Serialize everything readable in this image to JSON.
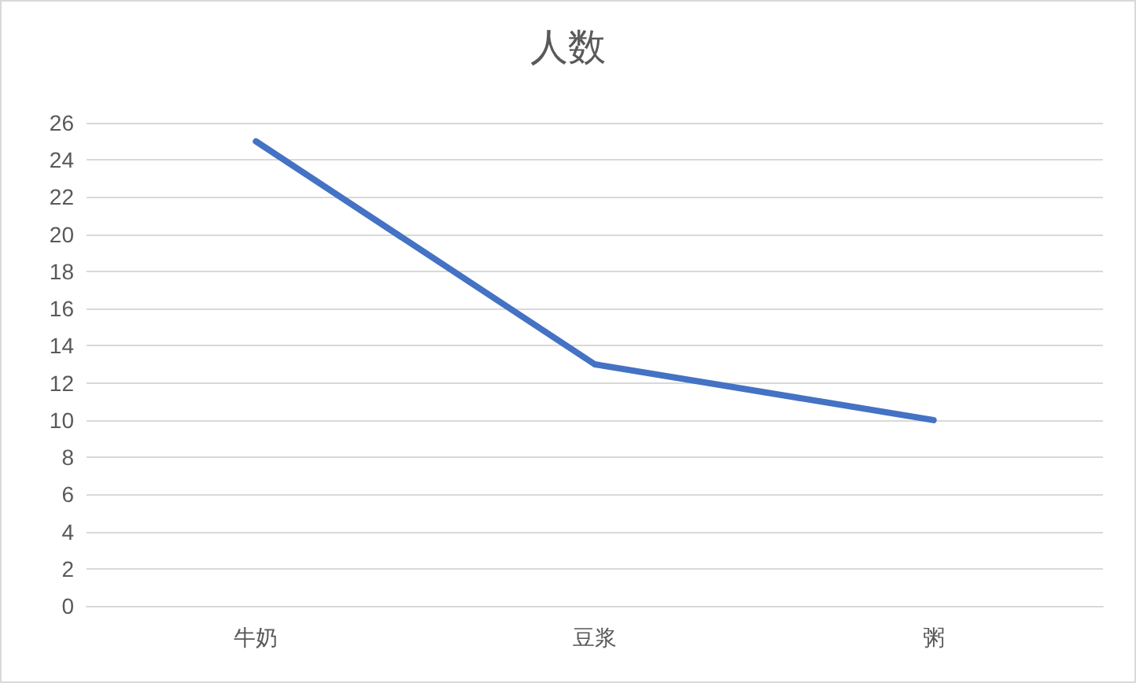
{
  "chart_data": {
    "type": "line",
    "title": "人数",
    "categories": [
      "牛奶",
      "豆浆",
      "粥"
    ],
    "series": [
      {
        "color": "#4472c4",
        "values": [
          25,
          13,
          10
        ]
      }
    ],
    "ylim": [
      0,
      26
    ],
    "yticks": [
      0,
      2,
      4,
      6,
      8,
      10,
      12,
      14,
      16,
      18,
      20,
      22,
      24,
      26
    ],
    "grid": "y",
    "marker": "none",
    "line_style": "solid"
  }
}
